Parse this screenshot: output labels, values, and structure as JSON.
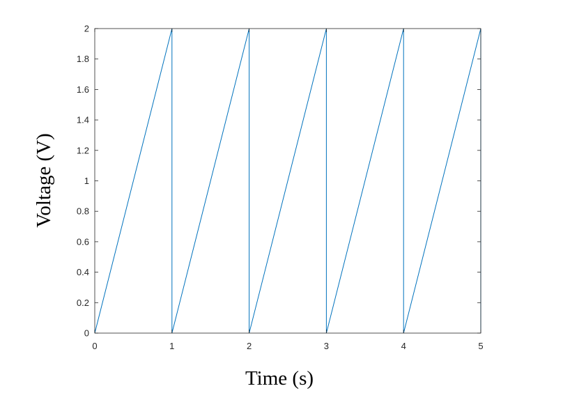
{
  "chart_data": {
    "type": "line",
    "title": "",
    "xlabel": "Time (s)",
    "ylabel": "Voltage (V)",
    "xlim": [
      0,
      5
    ],
    "ylim": [
      0,
      2
    ],
    "xticks": [
      0,
      1,
      2,
      3,
      4,
      5
    ],
    "yticks": [
      0,
      0.2,
      0.4,
      0.6,
      0.8,
      1,
      1.2,
      1.4,
      1.6,
      1.8,
      2
    ],
    "xtick_labels": [
      "0",
      "1",
      "2",
      "3",
      "4",
      "5"
    ],
    "ytick_labels": [
      "0",
      "0.2",
      "0.4",
      "0.6",
      "0.8",
      "1",
      "1.2",
      "1.4",
      "1.6",
      "1.8",
      "2"
    ],
    "grid": false,
    "legend": "none",
    "series": [
      {
        "color": "#0072BD",
        "x": [
          0,
          1,
          1,
          2,
          2,
          3,
          3,
          4,
          4,
          5,
          5
        ],
        "y": [
          0,
          2,
          0,
          2,
          0,
          2,
          0,
          2,
          0,
          2,
          0
        ]
      }
    ]
  }
}
